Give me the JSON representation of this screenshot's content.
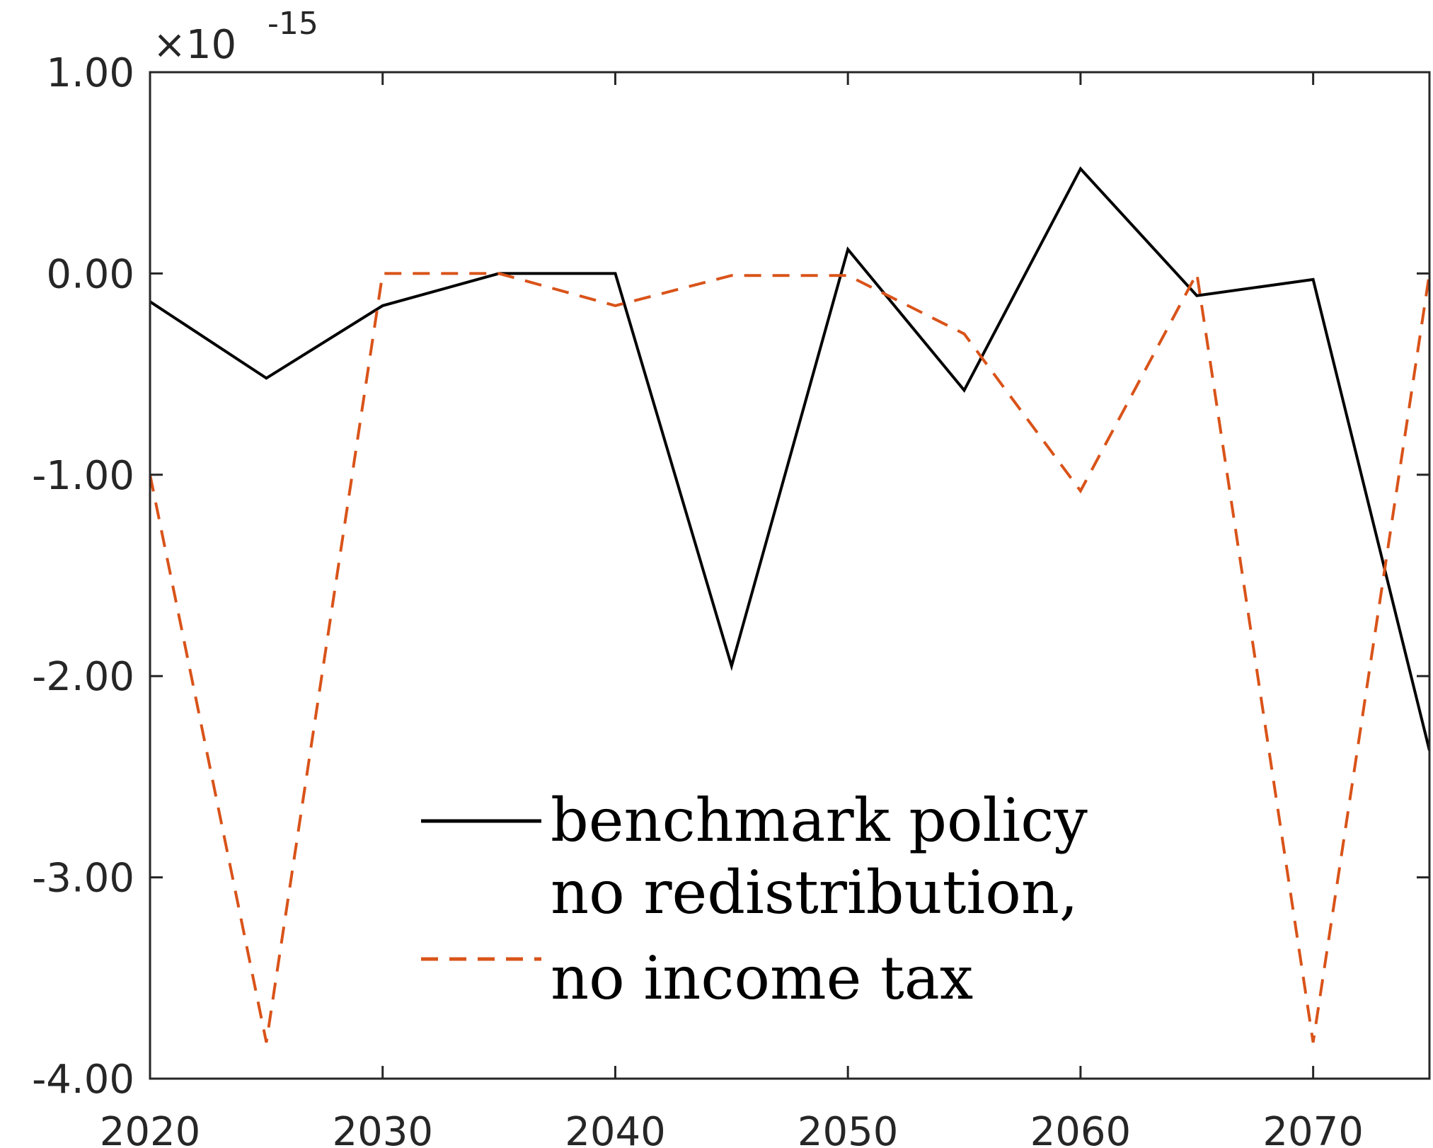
{
  "chart_data": {
    "type": "line",
    "title": "",
    "xlabel": "",
    "ylabel": "",
    "y_multiplier": "×10",
    "y_exponent": "-15",
    "xlim": [
      2020,
      2075
    ],
    "ylim": [
      -4.0,
      1.0
    ],
    "x_ticks": [
      2020,
      2030,
      2040,
      2050,
      2060,
      2070
    ],
    "x_tick_labels": [
      "2020",
      "2030",
      "2040",
      "2050",
      "2060",
      "2070"
    ],
    "y_ticks": [
      1.0,
      0.0,
      -1.0,
      -2.0,
      -3.0,
      -4.0
    ],
    "y_tick_labels": [
      "1.00",
      "0.00",
      "-1.00",
      "-2.00",
      "-3.00",
      "-4.00"
    ],
    "grid": false,
    "legend_position": "bottom-center",
    "x": [
      2020,
      2025,
      2030,
      2035,
      2040,
      2045,
      2050,
      2055,
      2060,
      2065,
      2070,
      2075
    ],
    "series": [
      {
        "name": "benchmark policy",
        "color": "#000000",
        "dash": "solid",
        "values": [
          -0.14,
          -0.52,
          -0.16,
          0.0,
          0.0,
          -1.95,
          0.12,
          -0.58,
          0.52,
          -0.11,
          -0.03,
          -2.37
        ]
      },
      {
        "name": "no redistribution, no income tax",
        "color": "#D95319",
        "dash": "dashed",
        "values": [
          -1.0,
          -3.82,
          0.0,
          0.0,
          -0.16,
          -0.01,
          -0.01,
          -0.3,
          -1.08,
          0.0,
          -3.82,
          0.0
        ]
      }
    ],
    "legend": [
      {
        "lines": [
          "benchmark policy"
        ],
        "color": "#000000",
        "dash": "solid"
      },
      {
        "lines": [
          "no redistribution,",
          "no income tax"
        ],
        "color": "#D95319",
        "dash": "dashed"
      }
    ]
  }
}
